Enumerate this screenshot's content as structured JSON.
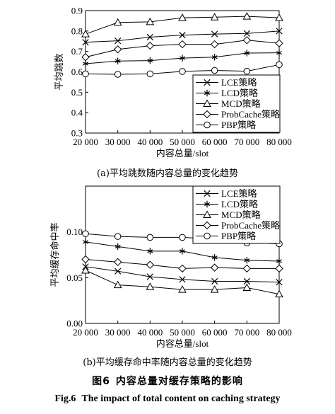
{
  "chart_data": [
    {
      "type": "line",
      "xlabel": "内容总量/slot",
      "ylabel": "平均跳数",
      "caption": "(a)平均跳数随内容总量的变化趋势",
      "x": [
        20000,
        30000,
        40000,
        50000,
        60000,
        70000,
        80000
      ],
      "x_tick_labels": [
        "20 000",
        "30 000",
        "40 000",
        "50 000",
        "60 000",
        "70 000",
        "80 000"
      ],
      "xlim": [
        20000,
        80000
      ],
      "ylim": [
        0.3,
        0.9
      ],
      "y_ticks": [
        0.3,
        0.4,
        0.5,
        0.6,
        0.7,
        0.8,
        0.9
      ],
      "y_tick_labels": [
        "0.3",
        "0.4",
        "0.5",
        "0.6",
        "0.7",
        "0.8",
        "0.9"
      ],
      "grid": false,
      "legend_position": "bottom-right",
      "series": [
        {
          "name": "LCE策略",
          "marker": "x",
          "values": [
            0.745,
            0.752,
            0.77,
            0.78,
            0.785,
            0.788,
            0.8
          ]
        },
        {
          "name": "LCD策略",
          "marker": "asterisk",
          "values": [
            0.64,
            0.653,
            0.655,
            0.667,
            0.672,
            0.692,
            0.693
          ]
        },
        {
          "name": "MCD策略",
          "marker": "triangle",
          "values": [
            0.785,
            0.842,
            0.845,
            0.865,
            0.868,
            0.872,
            0.865
          ]
        },
        {
          "name": "ProbCache策略",
          "marker": "diamond",
          "values": [
            0.672,
            0.71,
            0.728,
            0.735,
            0.735,
            0.755,
            0.74
          ]
        },
        {
          "name": "PBP策略",
          "marker": "circle",
          "values": [
            0.59,
            0.588,
            0.59,
            0.602,
            0.607,
            0.603,
            0.635
          ]
        }
      ]
    },
    {
      "type": "line",
      "xlabel": "内容总量/slot",
      "ylabel": "平均缓存命中率",
      "caption": "(b)平均缓存命中率随内容总量的变化趋势",
      "x": [
        20000,
        30000,
        40000,
        50000,
        60000,
        70000,
        80000
      ],
      "x_tick_labels": [
        "20 000",
        "30 000",
        "40 000",
        "50 000",
        "60 000",
        "70 000",
        "80 000"
      ],
      "xlim": [
        20000,
        80000
      ],
      "ylim": [
        0.0,
        0.15
      ],
      "y_ticks": [
        0.0,
        0.05,
        0.1
      ],
      "y_tick_labels": [
        "0.00",
        "0.05",
        "0.10"
      ],
      "grid": false,
      "legend_position": "top-right",
      "series": [
        {
          "name": "LCE策略",
          "marker": "x",
          "values": [
            0.062,
            0.057,
            0.051,
            0.048,
            0.046,
            0.046,
            0.045
          ]
        },
        {
          "name": "LCD策略",
          "marker": "asterisk",
          "values": [
            0.089,
            0.084,
            0.079,
            0.079,
            0.072,
            0.069,
            0.068
          ]
        },
        {
          "name": "MCD策略",
          "marker": "triangle",
          "values": [
            0.058,
            0.042,
            0.04,
            0.037,
            0.037,
            0.039,
            0.032
          ]
        },
        {
          "name": "ProbCache策略",
          "marker": "diamond",
          "values": [
            0.07,
            0.067,
            0.064,
            0.06,
            0.061,
            0.06,
            0.06
          ]
        },
        {
          "name": "PBP策略",
          "marker": "circle",
          "values": [
            0.098,
            0.095,
            0.094,
            0.094,
            0.092,
            0.088,
            0.087
          ]
        }
      ]
    }
  ],
  "figure": {
    "title_cn_label": "图6",
    "title_cn": "内容总量对缓存策略的影响",
    "title_en_label": "Fig.6",
    "title_en": "The impact of total content on caching strategy"
  }
}
